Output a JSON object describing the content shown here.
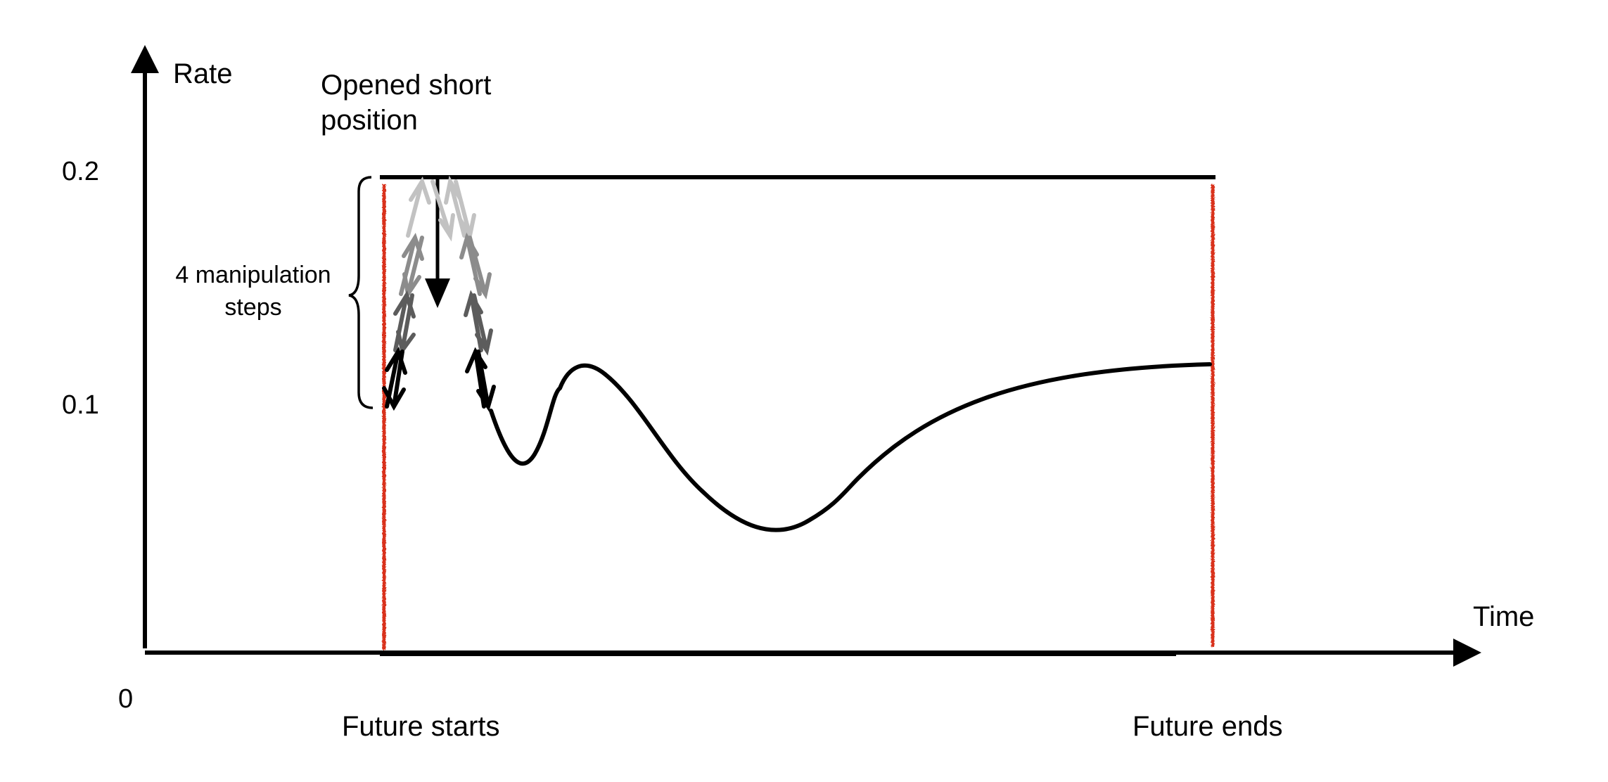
{
  "labels": {
    "y_axis": "Rate",
    "x_axis": "Time",
    "origin": "0",
    "tick_high": "0.2",
    "tick_low": "0.1",
    "short_line1": "Opened short",
    "short_line2": "position",
    "steps_line1": "4 manipulation",
    "steps_line2": "steps",
    "future_start": "Future starts",
    "future_end": "Future ends"
  },
  "colors": {
    "axis": "#000000",
    "rate_curve": "#000000",
    "future_bounds": "#d9301f",
    "step_shades": [
      "#c2c2c2",
      "#8c8c8c",
      "#5c5c5c",
      "#000000"
    ]
  },
  "manipulation_steps": 4
}
